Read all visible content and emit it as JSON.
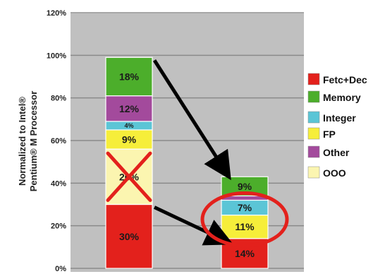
{
  "chart_data": {
    "type": "bar",
    "stacked": true,
    "ylabel": "Normalized to Intel® Pentium® M Processor",
    "ylim": [
      0,
      120
    ],
    "yticks": [
      "0%",
      "20%",
      "40%",
      "60%",
      "80%",
      "100%",
      "120%"
    ],
    "grid": true,
    "legend_position": "right",
    "bars": [
      {
        "segments": [
          {
            "series": "Fetc+Dec",
            "value": 30,
            "label": "30%"
          },
          {
            "series": "OOO",
            "value": 26,
            "label": "26%"
          },
          {
            "series": "FP",
            "value": 9,
            "label": "9%"
          },
          {
            "series": "Integer",
            "value": 4,
            "label": "4%"
          },
          {
            "series": "Other",
            "value": 12,
            "label": "12%"
          },
          {
            "series": "Memory",
            "value": 18,
            "label": "18%"
          }
        ]
      },
      {
        "segments": [
          {
            "series": "Fetc+Dec",
            "value": 14,
            "label": "14%"
          },
          {
            "series": "FP",
            "value": 11,
            "label": "11%"
          },
          {
            "series": "Integer",
            "value": 7,
            "label": "7%"
          },
          {
            "series": "Other",
            "value": 2,
            "label": ""
          },
          {
            "series": "Memory",
            "value": 9,
            "label": "9%"
          }
        ]
      }
    ],
    "legend": [
      {
        "name": "Fetc+Dec",
        "color": "#e3211c"
      },
      {
        "name": "Memory",
        "color": "#4cae2b"
      },
      {
        "name": "Integer",
        "color": "#5bc5d6"
      },
      {
        "name": "FP",
        "color": "#f6ee3a"
      },
      {
        "name": "Other",
        "color": "#a34a9c"
      },
      {
        "name": "OOO",
        "color": "#fbf5b0"
      }
    ],
    "colors": {
      "Fetc+Dec": "#e3211c",
      "OOO": "#fbf5b0",
      "FP": "#f6ee3a",
      "Integer": "#5bc5d6",
      "Other": "#a34a9c",
      "Memory": "#4cae2b",
      "plot_background": "#c0c0c0",
      "annotation_red": "#e3211c",
      "arrow": "#000000"
    },
    "annotations": [
      {
        "kind": "cross-out",
        "target": "OOO segment of first bar"
      },
      {
        "kind": "arrow",
        "from": "first bar top",
        "to": "second bar top"
      },
      {
        "kind": "arrow",
        "from": "first bar Fetc+Dec top",
        "to": "second bar Fetc+Dec top"
      },
      {
        "kind": "ellipse",
        "target": "FP and Integer segments of second bar"
      }
    ]
  }
}
